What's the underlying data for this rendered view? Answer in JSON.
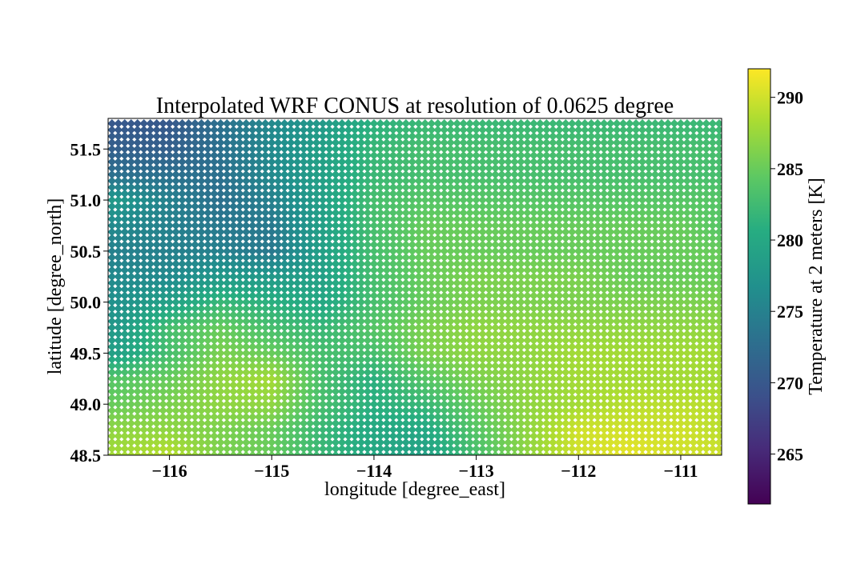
{
  "chart_data": {
    "type": "scatter",
    "title": "Interpolated WRF CONUS at resolution of 0.0625 degree",
    "xlabel": "longitude [degree_east]",
    "ylabel": "latitude [degree_north]",
    "xlim": [
      -116.6,
      -110.6
    ],
    "ylim": [
      48.5,
      51.8
    ],
    "grid": false,
    "marker": "diamond",
    "grid_resolution_deg": 0.0625,
    "x_ticks": [
      -116,
      -115,
      -114,
      -113,
      -112,
      -111
    ],
    "x_tick_labels": [
      "−116",
      "−115",
      "−114",
      "−113",
      "−112",
      "−111"
    ],
    "y_ticks": [
      48.5,
      49.0,
      49.5,
      50.0,
      50.5,
      51.0,
      51.5
    ],
    "y_tick_labels": [
      "48.5",
      "49.0",
      "49.5",
      "50.0",
      "50.5",
      "51.0",
      "51.5"
    ],
    "colorbar": {
      "label": "Temperature at 2 meters [K]",
      "colormap": "viridis",
      "range": [
        261.5,
        292
      ],
      "ticks": [
        265,
        270,
        275,
        280,
        285,
        290
      ],
      "tick_labels": [
        "265",
        "270",
        "275",
        "280",
        "285",
        "290"
      ]
    },
    "field_samples": {
      "description_units": "K",
      "lons": [
        -116.5,
        -116.0,
        -115.5,
        -115.0,
        -114.5,
        -114.0,
        -113.5,
        -113.0,
        -112.5,
        -112.0,
        -111.5,
        -111.0,
        -110.6
      ],
      "lats": [
        48.5,
        48.75,
        49.0,
        49.25,
        49.5,
        49.75,
        50.0,
        50.25,
        50.5,
        50.75,
        51.0,
        51.25,
        51.5,
        51.8
      ],
      "values": [
        [
          288,
          289,
          286,
          285,
          282,
          280,
          279,
          283,
          287,
          290,
          291,
          290,
          290
        ],
        [
          287,
          287,
          286,
          285,
          282,
          280,
          280,
          284,
          287,
          290,
          290,
          290,
          289
        ],
        [
          285,
          286,
          287,
          287,
          283,
          281,
          282,
          285,
          287,
          288,
          289,
          289,
          289
        ],
        [
          284,
          285,
          287,
          288,
          283,
          281,
          284,
          286,
          287,
          288,
          288,
          288,
          288
        ],
        [
          279,
          283,
          286,
          285,
          283,
          283,
          286,
          287,
          287,
          288,
          288,
          288,
          288
        ],
        [
          278,
          283,
          285,
          283,
          282,
          284,
          286,
          287,
          287,
          287,
          287,
          287,
          287
        ],
        [
          277,
          279,
          282,
          281,
          280,
          283,
          285,
          286,
          286,
          286,
          286,
          286,
          286
        ],
        [
          276,
          276,
          278,
          278,
          279,
          283,
          285,
          286,
          286,
          286,
          285,
          285,
          285
        ],
        [
          275,
          275,
          275,
          274,
          279,
          283,
          285,
          285,
          285,
          285,
          285,
          285,
          285
        ],
        [
          276,
          275,
          274,
          274,
          279,
          283,
          285,
          285,
          285,
          285,
          285,
          285,
          284
        ],
        [
          278,
          275,
          273,
          275,
          279,
          283,
          284,
          284,
          284,
          284,
          284,
          284,
          284
        ],
        [
          273,
          273,
          273,
          276,
          279,
          282,
          283,
          283,
          283,
          283,
          283,
          283,
          283
        ],
        [
          271,
          271,
          273,
          276,
          279,
          282,
          283,
          283,
          283,
          283,
          283,
          283,
          283
        ],
        [
          270,
          270,
          273,
          276,
          278,
          281,
          282,
          282,
          282,
          282,
          282,
          282,
          282
        ]
      ]
    }
  }
}
